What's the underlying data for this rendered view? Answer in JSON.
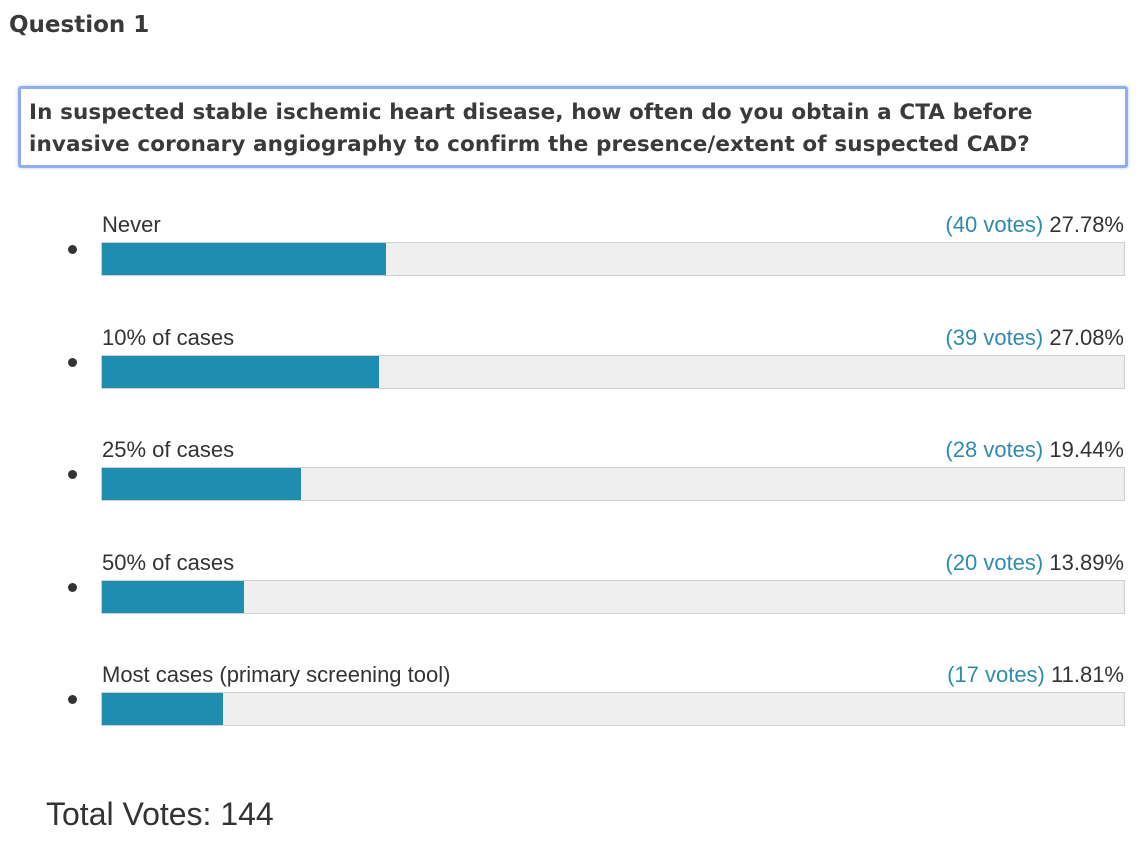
{
  "question_label": "Question 1",
  "question_text_line1": "In suspected stable ischemic heart disease, how often do you obtain a CTA before",
  "question_text_line2": "invasive coronary angiography to confirm the presence/extent of suspected CAD?",
  "options": [
    {
      "label": "Never",
      "votes_text": "(40 votes)",
      "percent_text": "27.78%"
    },
    {
      "label": "10% of cases",
      "votes_text": "(39 votes)",
      "percent_text": "27.08%"
    },
    {
      "label": "25% of cases",
      "votes_text": "(28 votes)",
      "percent_text": "19.44%"
    },
    {
      "label": "50% of cases",
      "votes_text": "(20 votes)",
      "percent_text": "13.89%"
    },
    {
      "label": "Most cases (primary screening tool)",
      "votes_text": "(17 votes)",
      "percent_text": "11.81%"
    }
  ],
  "total_votes_text": "Total Votes: 144",
  "colors": {
    "bar_fill": "#1f8db0",
    "bar_track": "#efefef",
    "votes_text": "#2d8bab",
    "question_border": "#8eaef0"
  },
  "chart_data": {
    "type": "bar",
    "orientation": "horizontal",
    "categories": [
      "Never",
      "10% of cases",
      "25% of cases",
      "50% of cases",
      "Most cases (primary screening tool)"
    ],
    "values": [
      27.78,
      27.08,
      19.44,
      13.89,
      11.81
    ],
    "votes": [
      40,
      39,
      28,
      20,
      17
    ],
    "total_votes": 144,
    "xlim": [
      0,
      100
    ],
    "title": "",
    "xlabel": "",
    "ylabel": "",
    "grid": false,
    "legend": "none"
  }
}
